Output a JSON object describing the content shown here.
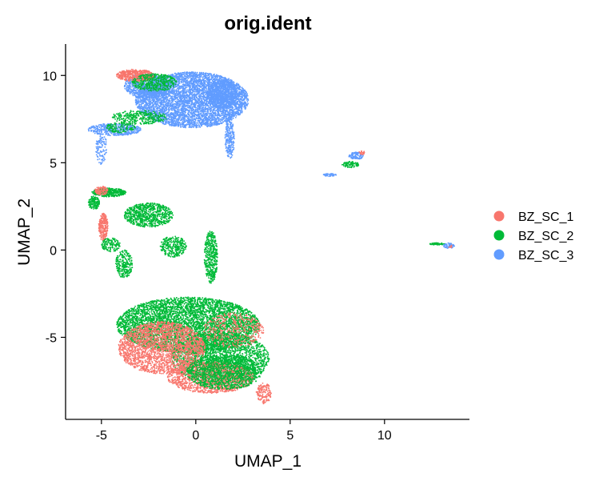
{
  "chart_data": {
    "type": "scatter",
    "title": "orig.ident",
    "xlabel": "UMAP_1",
    "ylabel": "UMAP_2",
    "xlim": [
      -6.9,
      14.5
    ],
    "ylim": [
      -9.7,
      11.8
    ],
    "xticks": [
      -5,
      0,
      5,
      10
    ],
    "yticks": [
      -5,
      0,
      5,
      10
    ],
    "grid": false,
    "legend_position": "right",
    "series": [
      {
        "name": "BZ_SC_1",
        "color": "#F8766D"
      },
      {
        "name": "BZ_SC_2",
        "color": "#00BA38"
      },
      {
        "name": "BZ_SC_3",
        "color": "#619CFF"
      }
    ],
    "clusters": [
      {
        "series": "BZ_SC_3",
        "shape": "ellipse",
        "cx": -0.2,
        "cy": 8.6,
        "rx": 3.0,
        "ry": 1.6,
        "n": 5200
      },
      {
        "series": "BZ_SC_3",
        "shape": "ellipse",
        "cx": 1.4,
        "cy": 8.9,
        "rx": 0.8,
        "ry": 0.8,
        "n": 700
      },
      {
        "series": "BZ_SC_3",
        "shape": "ellipse",
        "cx": -2.6,
        "cy": 9.4,
        "rx": 1.2,
        "ry": 0.7,
        "n": 800
      },
      {
        "series": "BZ_SC_3",
        "shape": "ellipse",
        "cx": -4.3,
        "cy": 6.9,
        "rx": 1.4,
        "ry": 0.35,
        "n": 500
      },
      {
        "series": "BZ_SC_3",
        "shape": "ellipse",
        "cx": -5.0,
        "cy": 5.8,
        "rx": 0.3,
        "ry": 0.9,
        "n": 120
      },
      {
        "series": "BZ_SC_3",
        "shape": "ellipse",
        "cx": 1.8,
        "cy": 6.4,
        "rx": 0.25,
        "ry": 1.2,
        "n": 250
      },
      {
        "series": "BZ_SC_1",
        "shape": "ellipse",
        "cx": -3.2,
        "cy": 10.0,
        "rx": 1.0,
        "ry": 0.35,
        "n": 500
      },
      {
        "series": "BZ_SC_2",
        "shape": "ellipse",
        "cx": -2.2,
        "cy": 9.6,
        "rx": 1.2,
        "ry": 0.5,
        "n": 450
      },
      {
        "series": "BZ_SC_2",
        "shape": "ellipse",
        "cx": -3.0,
        "cy": 7.6,
        "rx": 1.5,
        "ry": 0.4,
        "n": 350
      },
      {
        "series": "BZ_SC_2",
        "shape": "ellipse",
        "cx": -4.0,
        "cy": 7.0,
        "rx": 0.8,
        "ry": 0.3,
        "n": 120
      },
      {
        "series": "BZ_SC_3",
        "shape": "ellipse",
        "cx": 8.5,
        "cy": 5.4,
        "rx": 0.4,
        "ry": 0.2,
        "n": 100
      },
      {
        "series": "BZ_SC_1",
        "shape": "ellipse",
        "cx": 8.8,
        "cy": 5.6,
        "rx": 0.15,
        "ry": 0.15,
        "n": 20
      },
      {
        "series": "BZ_SC_2",
        "shape": "ellipse",
        "cx": 8.2,
        "cy": 4.9,
        "rx": 0.45,
        "ry": 0.18,
        "n": 90
      },
      {
        "series": "BZ_SC_3",
        "shape": "ellipse",
        "cx": 7.1,
        "cy": 4.3,
        "rx": 0.35,
        "ry": 0.08,
        "n": 50
      },
      {
        "series": "BZ_SC_2",
        "shape": "ellipse",
        "cx": 12.8,
        "cy": 0.35,
        "rx": 0.4,
        "ry": 0.06,
        "n": 60
      },
      {
        "series": "BZ_SC_3",
        "shape": "ellipse",
        "cx": 13.4,
        "cy": 0.25,
        "rx": 0.3,
        "ry": 0.15,
        "n": 60
      },
      {
        "series": "BZ_SC_1",
        "shape": "ellipse",
        "cx": 13.5,
        "cy": 0.2,
        "rx": 0.1,
        "ry": 0.1,
        "n": 8
      },
      {
        "series": "BZ_SC_2",
        "shape": "ellipse",
        "cx": -4.6,
        "cy": 3.3,
        "rx": 0.9,
        "ry": 0.25,
        "n": 400
      },
      {
        "series": "BZ_SC_1",
        "shape": "ellipse",
        "cx": -5.0,
        "cy": 3.4,
        "rx": 0.35,
        "ry": 0.25,
        "n": 120
      },
      {
        "series": "BZ_SC_2",
        "shape": "ellipse",
        "cx": -5.4,
        "cy": 2.7,
        "rx": 0.3,
        "ry": 0.4,
        "n": 150
      },
      {
        "series": "BZ_SC_1",
        "shape": "ellipse",
        "cx": -4.9,
        "cy": 1.3,
        "rx": 0.25,
        "ry": 0.8,
        "n": 250
      },
      {
        "series": "BZ_SC_2",
        "shape": "ellipse",
        "cx": -4.5,
        "cy": 0.3,
        "rx": 0.5,
        "ry": 0.4,
        "n": 150
      },
      {
        "series": "BZ_SC_2",
        "shape": "ellipse",
        "cx": -2.5,
        "cy": 2.0,
        "rx": 1.3,
        "ry": 0.7,
        "n": 800
      },
      {
        "series": "BZ_SC_2",
        "shape": "ellipse",
        "cx": -1.2,
        "cy": 0.2,
        "rx": 0.7,
        "ry": 0.6,
        "n": 300
      },
      {
        "series": "BZ_SC_2",
        "shape": "ellipse",
        "cx": -3.8,
        "cy": -0.8,
        "rx": 0.45,
        "ry": 0.8,
        "n": 250
      },
      {
        "series": "BZ_SC_2",
        "shape": "ellipse",
        "cx": 0.8,
        "cy": -0.4,
        "rx": 0.35,
        "ry": 1.5,
        "n": 450
      },
      {
        "series": "BZ_SC_2",
        "shape": "ellipse",
        "cx": -0.4,
        "cy": -4.3,
        "rx": 3.8,
        "ry": 1.6,
        "n": 5000
      },
      {
        "series": "BZ_SC_2",
        "shape": "ellipse",
        "cx": 1.3,
        "cy": -6.2,
        "rx": 2.6,
        "ry": 1.5,
        "n": 2200
      },
      {
        "series": "BZ_SC_1",
        "shape": "ellipse",
        "cx": -1.8,
        "cy": -5.6,
        "rx": 2.3,
        "ry": 1.5,
        "n": 2400
      },
      {
        "series": "BZ_SC_1",
        "shape": "ellipse",
        "cx": 0.8,
        "cy": -7.3,
        "rx": 2.3,
        "ry": 0.9,
        "n": 1500
      },
      {
        "series": "BZ_SC_1",
        "shape": "ellipse",
        "cx": 3.6,
        "cy": -8.2,
        "rx": 0.4,
        "ry": 0.6,
        "n": 150
      },
      {
        "series": "BZ_SC_2",
        "shape": "ellipse",
        "cx": 1.5,
        "cy": -7.0,
        "rx": 2.0,
        "ry": 1.0,
        "n": 1300
      },
      {
        "series": "BZ_SC_1",
        "shape": "ellipse",
        "cx": 2.0,
        "cy": -4.6,
        "rx": 1.6,
        "ry": 1.0,
        "n": 400
      }
    ]
  }
}
